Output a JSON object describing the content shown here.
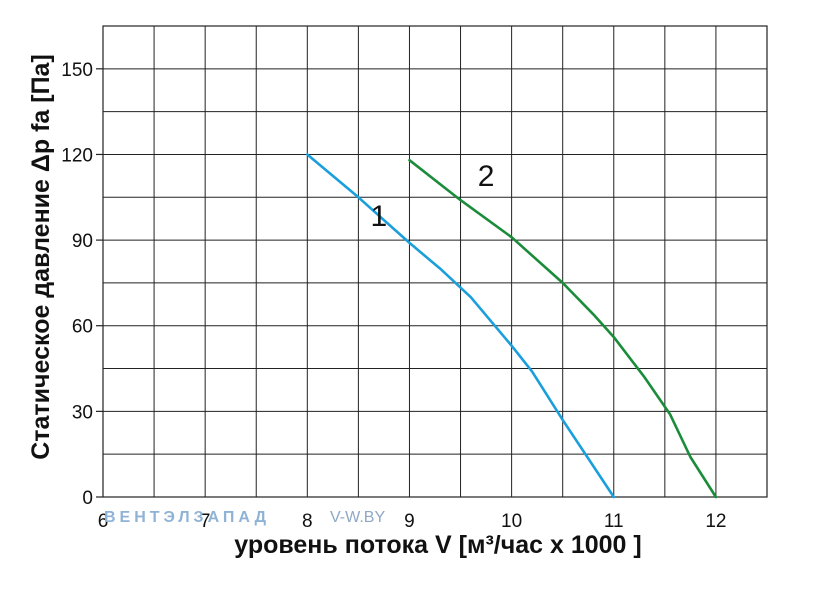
{
  "chart_data": {
    "type": "line",
    "xlabel": "уровень потока  V [м³/час x 1000 ]",
    "ylabel": "Статическое давление  Δp fa [Па]",
    "xlim": [
      6,
      12.5
    ],
    "ylim": [
      0,
      165
    ],
    "x_ticks": [
      "6",
      "7",
      "8",
      "9",
      "10",
      "11",
      "12"
    ],
    "y_ticks": [
      "0",
      "30",
      "60",
      "90",
      "120",
      "150"
    ],
    "grid": true,
    "series": [
      {
        "name": "1",
        "color": "#1a9fdc",
        "points": [
          [
            8.0,
            120
          ],
          [
            8.5,
            105
          ],
          [
            9.0,
            89
          ],
          [
            9.3,
            80
          ],
          [
            9.6,
            70
          ],
          [
            10.0,
            53
          ],
          [
            10.2,
            44
          ],
          [
            10.5,
            27
          ],
          [
            11.0,
            0
          ]
        ]
      },
      {
        "name": "2",
        "color": "#1a8c3a",
        "points": [
          [
            9.0,
            118
          ],
          [
            9.5,
            104
          ],
          [
            10.0,
            91
          ],
          [
            10.5,
            75
          ],
          [
            10.8,
            64
          ],
          [
            11.0,
            56
          ],
          [
            11.3,
            42
          ],
          [
            11.55,
            29
          ],
          [
            11.75,
            14
          ],
          [
            12.0,
            0
          ]
        ]
      }
    ]
  },
  "watermark": {
    "brand": "ВЕНТЭЛЗАПАД",
    "url": "V-W.BY"
  }
}
